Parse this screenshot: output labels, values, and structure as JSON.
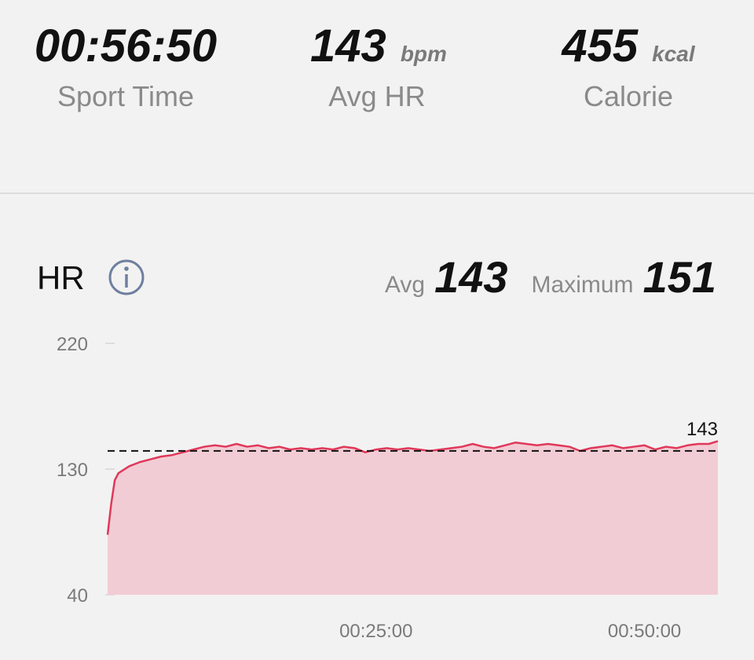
{
  "stats": [
    {
      "value": "00:56:50",
      "label": "Sport Time"
    },
    {
      "value": "143",
      "unit": "bpm",
      "label": "Avg HR"
    },
    {
      "value": "455",
      "unit": "kcal",
      "label": "Calorie"
    }
  ],
  "hr_header": {
    "title": "HR",
    "avg_label": "Avg",
    "avg": "143",
    "max_label": "Maximum",
    "max": "151"
  },
  "chart_data": {
    "type": "area",
    "x": [
      0,
      20,
      40,
      60,
      120,
      180,
      240,
      300,
      360,
      420,
      480,
      540,
      600,
      660,
      720,
      780,
      840,
      900,
      960,
      1020,
      1080,
      1140,
      1200,
      1260,
      1320,
      1380,
      1440,
      1500,
      1560,
      1620,
      1680,
      1740,
      1800,
      1860,
      1920,
      1980,
      2040,
      2100,
      2160,
      2220,
      2280,
      2340,
      2400,
      2460,
      2520,
      2580,
      2640,
      2700,
      2760,
      2820,
      2880,
      2940,
      3000,
      3060,
      3120,
      3180,
      3240,
      3300,
      3360,
      3410
    ],
    "values": [
      83,
      105,
      122,
      127,
      132,
      135,
      137,
      139,
      140,
      142,
      144,
      146,
      147,
      146,
      148,
      146,
      147,
      145,
      146,
      144,
      145,
      144,
      145,
      144,
      146,
      145,
      142,
      144,
      145,
      144,
      145,
      144,
      143,
      144,
      145,
      146,
      148,
      146,
      145,
      147,
      149,
      148,
      147,
      148,
      147,
      146,
      143,
      145,
      146,
      147,
      145,
      146,
      147,
      144,
      146,
      145,
      147,
      148,
      148,
      150
    ],
    "color": "#e0385a",
    "fill_color": "#f2ccd4",
    "xlim": [
      0,
      3410
    ],
    "xticks": [
      {
        "value": 1500,
        "label": "00:25:00"
      },
      {
        "value": 3000,
        "label": "00:50:00"
      }
    ],
    "ylim": [
      40,
      220
    ],
    "yticks": [
      40,
      130,
      220
    ],
    "avg_line": 143
  }
}
